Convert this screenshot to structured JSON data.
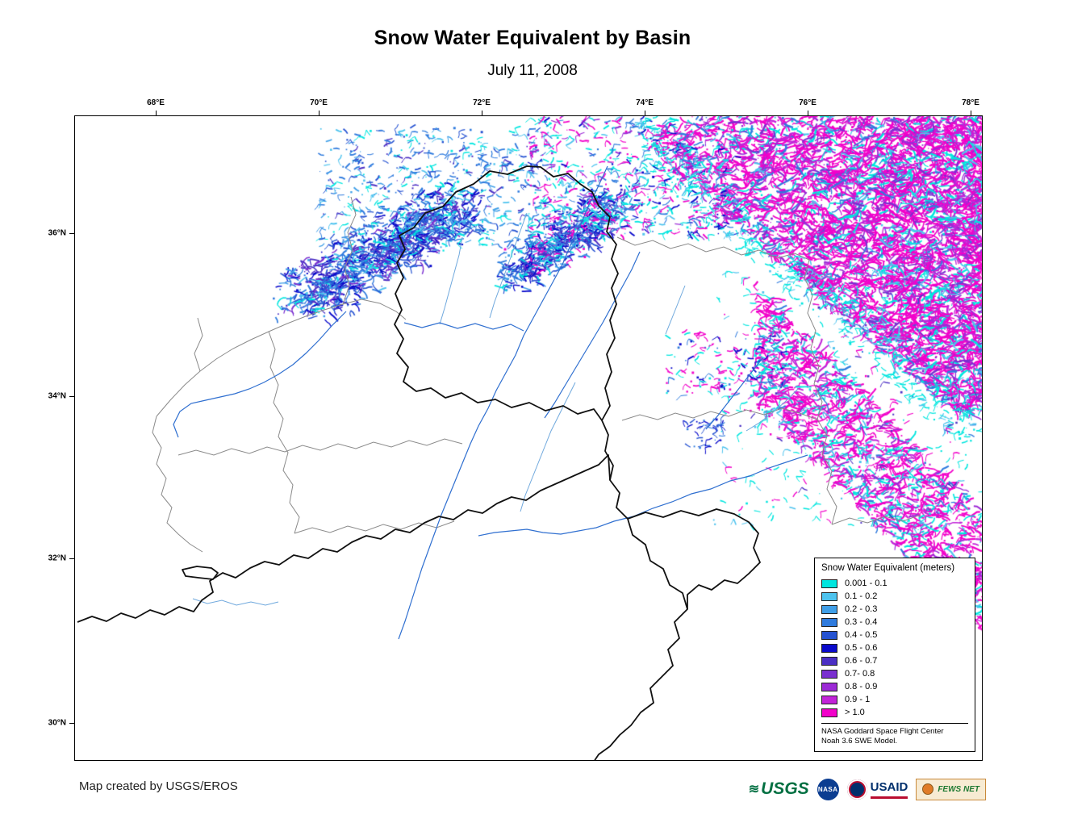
{
  "header": {
    "title": "Snow Water Equivalent by Basin",
    "date": "July 11, 2008"
  },
  "axes": {
    "longitude_ticks": [
      "68°E",
      "70°E",
      "72°E",
      "74°E",
      "76°E",
      "78°E"
    ],
    "latitude_ticks": [
      "36°N",
      "34°N",
      "32°N",
      "30°N"
    ]
  },
  "legend": {
    "title": "Snow Water Equivalent (meters)",
    "items": [
      {
        "label": "0.001 - 0.1",
        "color": "#00E6DF"
      },
      {
        "label": "0.1 - 0.2",
        "color": "#4EC3EE"
      },
      {
        "label": "0.2 - 0.3",
        "color": "#3F9FE8"
      },
      {
        "label": "0.3 - 0.4",
        "color": "#2F7BDE"
      },
      {
        "label": "0.4 - 0.5",
        "color": "#2653D2"
      },
      {
        "label": "0.5 - 0.6",
        "color": "#0A0ACB"
      },
      {
        "label": "0.6 - 0.7",
        "color": "#4B2FC4"
      },
      {
        "label": "0.7- 0.8",
        "color": "#7A2FD0"
      },
      {
        "label": "0.8 - 0.9",
        "color": "#9C2AD6"
      },
      {
        "label": "0.9 - 1",
        "color": "#C224D8"
      },
      {
        "label": "> 1.0",
        "color": "#F202CA"
      }
    ],
    "source_line1": "NASA Goddard Space Flight Center",
    "source_line2": "Noah 3.6 SWE Model."
  },
  "map": {
    "basin_boundary_color": "#111111",
    "subbasin_color": "#8a8a8a",
    "river_color": "#2f6fd0",
    "river_light_color": "#6fa8dd"
  },
  "footer": {
    "credit": "Map created by USGS/EROS"
  },
  "logos": {
    "usgs": {
      "label": "USGS",
      "color": "#006f41"
    },
    "nasa": {
      "label": "NASA",
      "color": "#0b3d91"
    },
    "usaid": {
      "label": "USAID",
      "color": "#002f6c"
    },
    "fews": {
      "label": "FEWS NET",
      "color": "#1f7a33"
    }
  }
}
